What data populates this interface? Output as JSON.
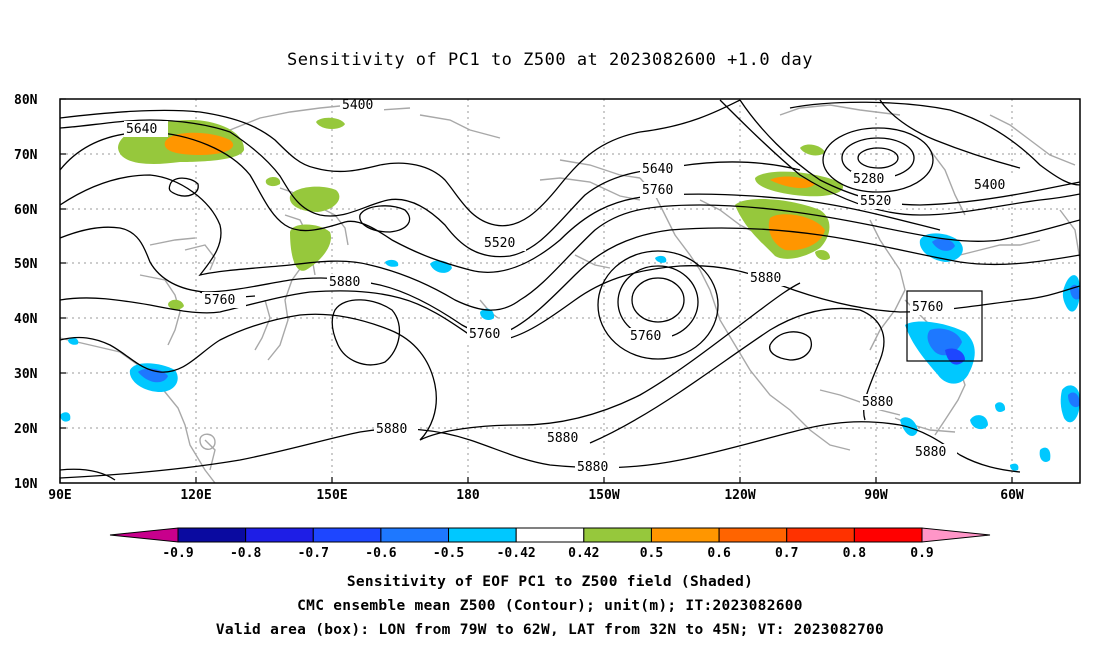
{
  "title": "Sensitivity of PC1 to Z500 at 2023082600 +1.0 day",
  "lat_labels": [
    "80N",
    "70N",
    "60N",
    "50N",
    "40N",
    "30N",
    "20N",
    "10N"
  ],
  "lon_labels": [
    "90E",
    "120E",
    "150E",
    "180",
    "150W",
    "120W",
    "90W",
    "60W"
  ],
  "contour_labels": [
    "5400",
    "5640",
    "5640",
    "5760",
    "5520",
    "5880",
    "5760",
    "5760",
    "5880",
    "5880",
    "5880",
    "5880",
    "5280",
    "5520",
    "5400",
    "5760",
    "5880",
    "5880"
  ],
  "colorbar": {
    "tick_labels": [
      "-0.9",
      "-0.8",
      "-0.7",
      "-0.6",
      "-0.5",
      "-0.42",
      "0.42",
      "0.5",
      "0.6",
      "0.7",
      "0.8",
      "0.9"
    ],
    "colors": [
      "#c8008c",
      "#0a0aa0",
      "#1e1ee6",
      "#1e46ff",
      "#1e78ff",
      "#00c8ff",
      "#ffffff",
      "#96c83c",
      "#ff9600",
      "#ff6400",
      "#ff3200",
      "#ff0000",
      "#ff96c8"
    ]
  },
  "captions": [
    "Sensitivity of EOF PC1 to Z500 field (Shaded)",
    "CMC ensemble mean Z500 (Contour); unit(m); IT:2023082600",
    "Valid area (box): LON from 79W to 62W, LAT from 32N to 45N; VT: 2023082700"
  ]
}
